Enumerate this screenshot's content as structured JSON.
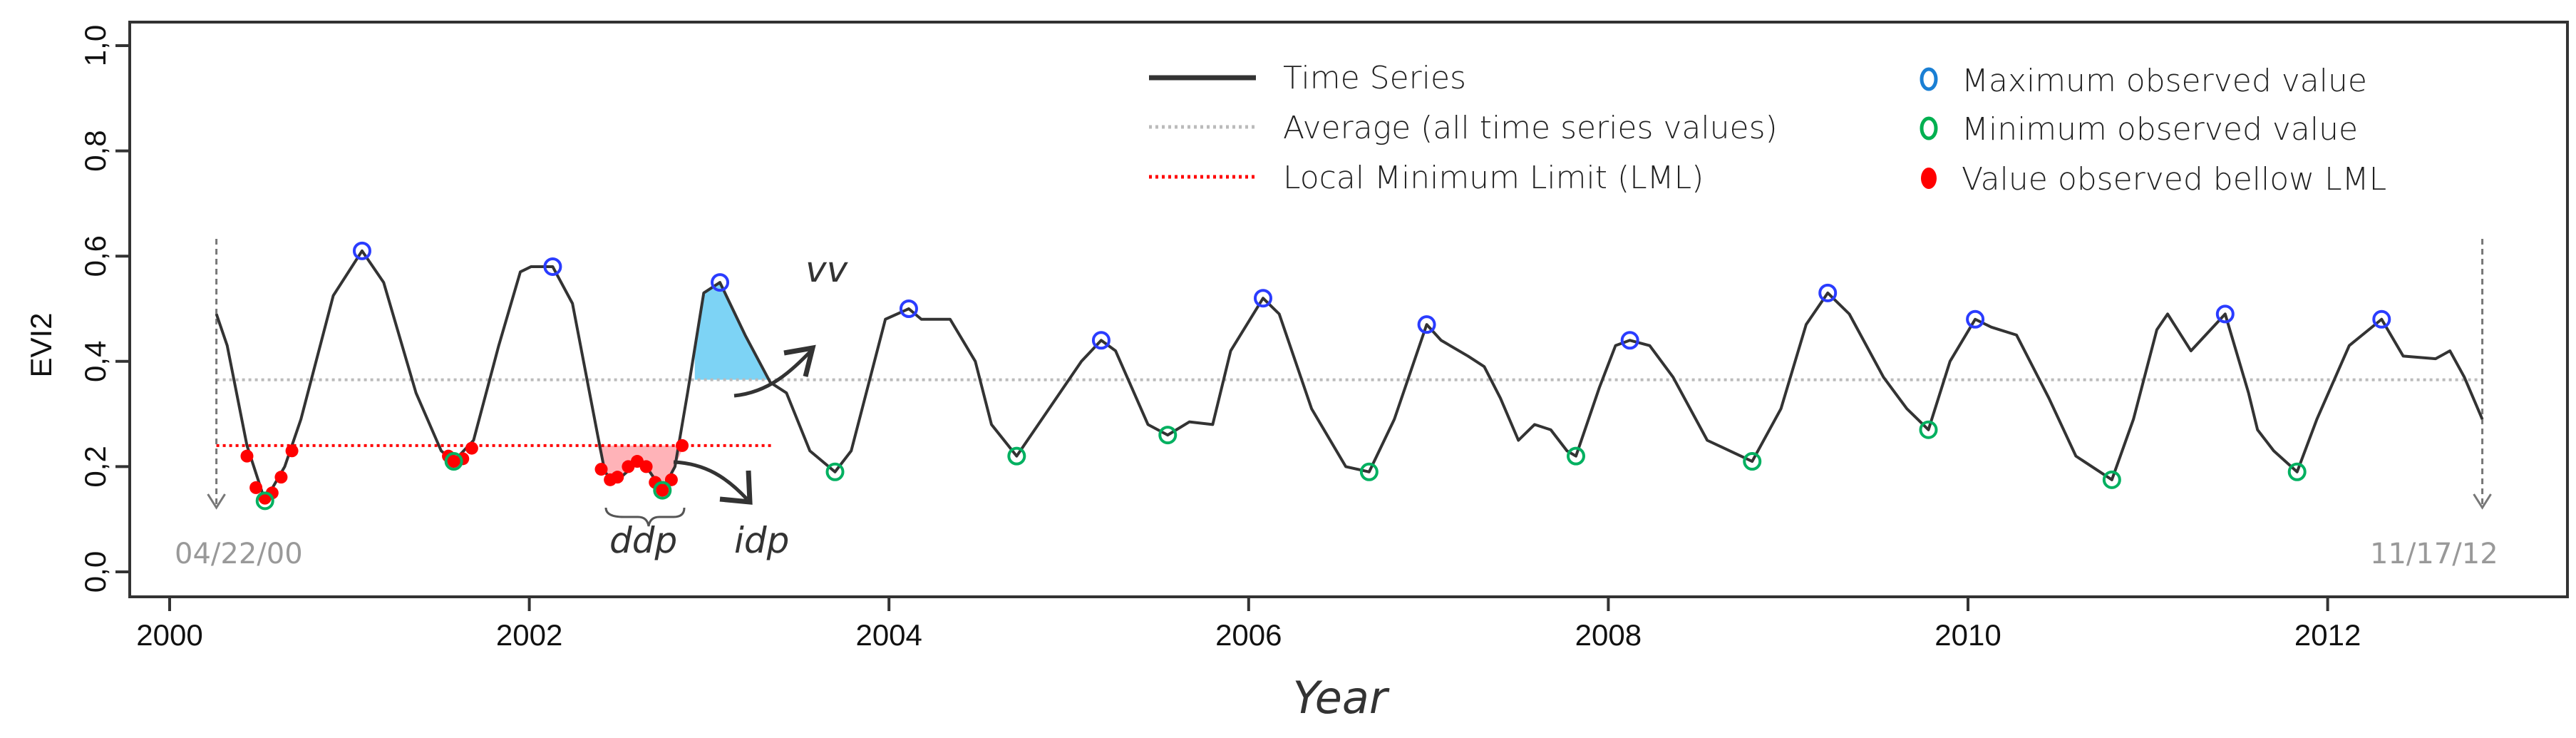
{
  "chart_data": {
    "type": "line",
    "xlabel": "Year",
    "ylabel": "EVI2",
    "xlim": [
      1999.45,
      2013.45
    ],
    "ylim": [
      -0.04,
      1.04
    ],
    "x_ticks": [
      2000,
      2002,
      2004,
      2006,
      2008,
      2010,
      2012
    ],
    "x_tick_labels": [
      "2000",
      "2002",
      "2004",
      "2006",
      "2008",
      "2010",
      "2012"
    ],
    "y_ticks": [
      0,
      0.2,
      0.4,
      0.6,
      0.8,
      1.0
    ],
    "y_tick_labels": [
      "0,0",
      "0,2",
      "0,4",
      "0,6",
      "0,8",
      "1,0"
    ],
    "legend": {
      "placement": "top-right",
      "items": [
        {
          "label": "Time Series",
          "style": "solid",
          "color": "#333333"
        },
        {
          "label": "Average (all time series values)",
          "style": "dotted",
          "color": "#bbbbbb"
        },
        {
          "label": "Local Minimum Limit (LML)",
          "style": "dotted",
          "color": "#ff0000"
        },
        {
          "label": "Maximum observed value",
          "style": "open-circle",
          "color": "#1a7fd4"
        },
        {
          "label": "Minimum observed value",
          "style": "open-circle",
          "color": "#00b050"
        },
        {
          "label": "Value observed bellow LML",
          "style": "filled-circle",
          "color": "#ff0000"
        }
      ]
    },
    "series": [
      {
        "name": "Time Series",
        "points": [
          [
            2000.26,
            0.49
          ],
          [
            2000.32,
            0.43
          ],
          [
            2000.43,
            0.24
          ],
          [
            2000.53,
            0.135
          ],
          [
            2000.64,
            0.2
          ],
          [
            2000.73,
            0.29
          ],
          [
            2000.91,
            0.525
          ],
          [
            2001.07,
            0.61
          ],
          [
            2001.19,
            0.55
          ],
          [
            2001.37,
            0.34
          ],
          [
            2001.51,
            0.23
          ],
          [
            2001.58,
            0.21
          ],
          [
            2001.69,
            0.25
          ],
          [
            2001.83,
            0.43
          ],
          [
            2001.95,
            0.57
          ],
          [
            2002.01,
            0.58
          ],
          [
            2002.13,
            0.58
          ],
          [
            2002.24,
            0.51
          ],
          [
            2002.38,
            0.26
          ],
          [
            2002.42,
            0.19
          ],
          [
            2002.47,
            0.17
          ],
          [
            2002.51,
            0.18
          ],
          [
            2002.61,
            0.21
          ],
          [
            2002.67,
            0.19
          ],
          [
            2002.74,
            0.155
          ],
          [
            2002.81,
            0.2
          ],
          [
            2002.88,
            0.34
          ],
          [
            2002.97,
            0.53
          ],
          [
            2003.06,
            0.55
          ],
          [
            2003.2,
            0.45
          ],
          [
            2003.34,
            0.36
          ],
          [
            2003.43,
            0.34
          ],
          [
            2003.56,
            0.23
          ],
          [
            2003.7,
            0.19
          ],
          [
            2003.79,
            0.23
          ],
          [
            2003.98,
            0.48
          ],
          [
            2004.11,
            0.5
          ],
          [
            2004.18,
            0.48
          ],
          [
            2004.34,
            0.48
          ],
          [
            2004.48,
            0.4
          ],
          [
            2004.57,
            0.28
          ],
          [
            2004.71,
            0.22
          ],
          [
            2004.89,
            0.31
          ],
          [
            2005.07,
            0.4
          ],
          [
            2005.18,
            0.44
          ],
          [
            2005.26,
            0.42
          ],
          [
            2005.44,
            0.28
          ],
          [
            2005.55,
            0.26
          ],
          [
            2005.67,
            0.285
          ],
          [
            2005.8,
            0.28
          ],
          [
            2005.9,
            0.42
          ],
          [
            2006.08,
            0.52
          ],
          [
            2006.17,
            0.49
          ],
          [
            2006.35,
            0.31
          ],
          [
            2006.54,
            0.2
          ],
          [
            2006.67,
            0.19
          ],
          [
            2006.81,
            0.29
          ],
          [
            2006.99,
            0.47
          ],
          [
            2007.07,
            0.44
          ],
          [
            2007.22,
            0.41
          ],
          [
            2007.31,
            0.39
          ],
          [
            2007.4,
            0.33
          ],
          [
            2007.5,
            0.25
          ],
          [
            2007.59,
            0.28
          ],
          [
            2007.68,
            0.27
          ],
          [
            2007.77,
            0.23
          ],
          [
            2007.82,
            0.22
          ],
          [
            2007.95,
            0.35
          ],
          [
            2008.04,
            0.43
          ],
          [
            2008.12,
            0.44
          ],
          [
            2008.23,
            0.43
          ],
          [
            2008.36,
            0.37
          ],
          [
            2008.55,
            0.25
          ],
          [
            2008.8,
            0.21
          ],
          [
            2008.96,
            0.31
          ],
          [
            2009.1,
            0.47
          ],
          [
            2009.22,
            0.53
          ],
          [
            2009.34,
            0.49
          ],
          [
            2009.53,
            0.37
          ],
          [
            2009.66,
            0.31
          ],
          [
            2009.78,
            0.27
          ],
          [
            2009.9,
            0.4
          ],
          [
            2010.04,
            0.48
          ],
          [
            2010.13,
            0.465
          ],
          [
            2010.27,
            0.45
          ],
          [
            2010.45,
            0.33
          ],
          [
            2010.6,
            0.22
          ],
          [
            2010.8,
            0.175
          ],
          [
            2010.92,
            0.29
          ],
          [
            2011.05,
            0.46
          ],
          [
            2011.11,
            0.49
          ],
          [
            2011.24,
            0.42
          ],
          [
            2011.43,
            0.49
          ],
          [
            2011.56,
            0.34
          ],
          [
            2011.61,
            0.27
          ],
          [
            2011.7,
            0.23
          ],
          [
            2011.83,
            0.19
          ],
          [
            2011.94,
            0.29
          ],
          [
            2012.12,
            0.43
          ],
          [
            2012.3,
            0.48
          ],
          [
            2012.42,
            0.41
          ],
          [
            2012.6,
            0.405
          ],
          [
            2012.68,
            0.42
          ],
          [
            2012.76,
            0.37
          ],
          [
            2012.86,
            0.29
          ]
        ]
      }
    ],
    "maximum_points": [
      [
        2001.07,
        0.61
      ],
      [
        2002.13,
        0.58
      ],
      [
        2003.06,
        0.55
      ],
      [
        2004.11,
        0.5
      ],
      [
        2005.18,
        0.44
      ],
      [
        2006.08,
        0.52
      ],
      [
        2006.99,
        0.47
      ],
      [
        2008.12,
        0.44
      ],
      [
        2009.22,
        0.53
      ],
      [
        2010.04,
        0.48
      ],
      [
        2011.43,
        0.49
      ],
      [
        2012.3,
        0.48
      ]
    ],
    "minimum_points": [
      [
        2000.53,
        0.135
      ],
      [
        2001.58,
        0.21
      ],
      [
        2002.74,
        0.155
      ],
      [
        2003.7,
        0.19
      ],
      [
        2004.71,
        0.22
      ],
      [
        2005.55,
        0.26
      ],
      [
        2006.67,
        0.19
      ],
      [
        2007.82,
        0.22
      ],
      [
        2008.8,
        0.21
      ],
      [
        2009.78,
        0.27
      ],
      [
        2010.8,
        0.175
      ],
      [
        2011.83,
        0.19
      ]
    ],
    "below_lml_points": [
      [
        2000.43,
        0.22
      ],
      [
        2000.48,
        0.16
      ],
      [
        2000.53,
        0.14
      ],
      [
        2000.57,
        0.15
      ],
      [
        2000.62,
        0.18
      ],
      [
        2000.68,
        0.23
      ],
      [
        2001.55,
        0.22
      ],
      [
        2001.58,
        0.21
      ],
      [
        2001.63,
        0.215
      ],
      [
        2001.68,
        0.235
      ],
      [
        2002.4,
        0.195
      ],
      [
        2002.45,
        0.175
      ],
      [
        2002.49,
        0.18
      ],
      [
        2002.55,
        0.2
      ],
      [
        2002.6,
        0.21
      ],
      [
        2002.65,
        0.2
      ],
      [
        2002.7,
        0.17
      ],
      [
        2002.74,
        0.155
      ],
      [
        2002.79,
        0.175
      ],
      [
        2002.85,
        0.24
      ]
    ],
    "average": {
      "value": 0.365,
      "x_range": [
        2000.26,
        2012.86
      ]
    },
    "lml": {
      "value": 0.24,
      "x_range": [
        2000.26,
        2003.35
      ]
    },
    "vv_area": {
      "x_range": [
        2002.92,
        2003.38
      ],
      "color": "#7dd3f5"
    },
    "ddp_area": {
      "x_range": [
        2002.37,
        2002.86
      ],
      "color": "#ffb3b8"
    },
    "annotations": {
      "vv": "vv",
      "idp": "idp",
      "ddp": "ddp",
      "start_date": "04/22/00",
      "end_date": "11/17/12"
    }
  }
}
